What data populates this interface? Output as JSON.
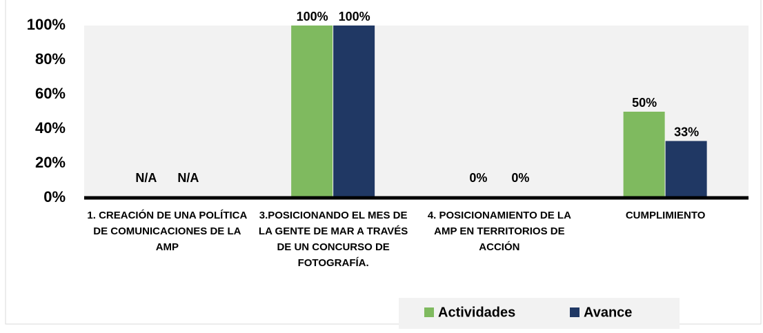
{
  "chart_data": {
    "type": "bar",
    "categories": [
      "1. CREACIÓN DE UNA POLÍTICA DE COMUNICACIONES DE LA AMP",
      "3.POSICIONANDO EL MES DE LA GENTE DE MAR A TRAVÉS DE UN CONCURSO DE FOTOGRAFÍA.",
      "4. POSICIONAMIENTO DE LA AMP EN TERRITORIOS DE ACCIÓN",
      "CUMPLIMIENTO"
    ],
    "series": [
      {
        "name": "Actividades",
        "color": "#7fba5f",
        "values": [
          null,
          100,
          0,
          50
        ],
        "value_labels": [
          "N/A",
          "100%",
          "0%",
          "50%"
        ]
      },
      {
        "name": "Avance",
        "color": "#203864",
        "values": [
          null,
          100,
          0,
          33
        ],
        "value_labels": [
          "N/A",
          "100%",
          "0%",
          "33%"
        ]
      }
    ],
    "ylim": [
      0,
      100
    ],
    "yticks": [
      {
        "value": 0,
        "label": "0%"
      },
      {
        "value": 20,
        "label": "20%"
      },
      {
        "value": 40,
        "label": "40%"
      },
      {
        "value": 60,
        "label": "60%"
      },
      {
        "value": 80,
        "label": "80%"
      },
      {
        "value": 100,
        "label": "100%"
      }
    ],
    "legend": "bottom"
  }
}
